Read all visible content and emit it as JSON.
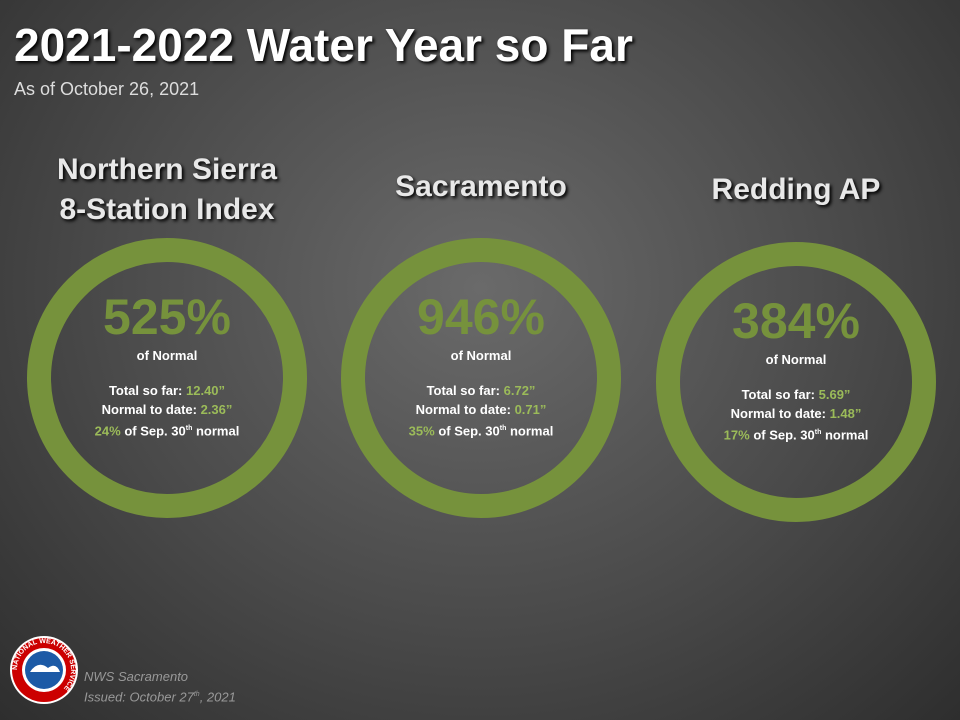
{
  "header": {
    "title": "2021-2022 Water Year so Far",
    "subtitle": "As of October 26, 2021"
  },
  "stations": [
    {
      "name": [
        "Northern Sierra",
        "8-Station Index"
      ],
      "percent": "525%",
      "percent_label": "of Normal",
      "total_label": "Total so far:",
      "total_value": "12.40”",
      "normal_label": "Normal to date:",
      "normal_value": "2.36”",
      "season_pct": "24%",
      "season_text": "of Sep. 30",
      "season_sup": "th",
      "season_tail": "normal"
    },
    {
      "name": [
        "Sacramento"
      ],
      "percent": "946%",
      "percent_label": "of Normal",
      "total_label": "Total so far:",
      "total_value": "6.72”",
      "normal_label": "Normal to date:",
      "normal_value": "0.71”",
      "season_pct": "35%",
      "season_text": "of Sep. 30",
      "season_sup": "th",
      "season_tail": "normal"
    },
    {
      "name": [
        "Redding AP"
      ],
      "percent": "384%",
      "percent_label": "of Normal",
      "total_label": "Total so far:",
      "total_value": "5.69”",
      "normal_label": "Normal to date:",
      "normal_value": "1.48”",
      "season_pct": "17%",
      "season_text": "of Sep. 30",
      "season_sup": "th",
      "season_tail": "normal"
    }
  ],
  "footer": {
    "logo_text": "NATIONAL WEATHER SERVICE",
    "office": "NWS Sacramento",
    "issued": "Issued: October 27",
    "issued_sup": "th",
    "issued_tail": ", 2021"
  }
}
